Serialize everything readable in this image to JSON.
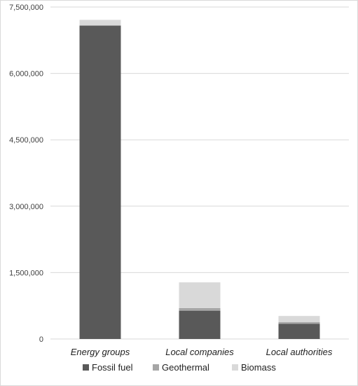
{
  "chart_data": {
    "type": "bar",
    "stacked": true,
    "title": "",
    "xlabel": "",
    "ylabel": "",
    "categories": [
      "Energy groups",
      "Local companies",
      "Local authorities"
    ],
    "series": [
      {
        "name": "Fossil fuel",
        "color": "#595959",
        "values": [
          7080000,
          640000,
          345000
        ]
      },
      {
        "name": "Geothermal",
        "color": "#a6a6a6",
        "values": [
          0,
          60000,
          35000
        ]
      },
      {
        "name": "Biomass",
        "color": "#d9d9d9",
        "values": [
          130000,
          580000,
          140000
        ]
      }
    ],
    "yticks": [
      0,
      1500000,
      3000000,
      4500000,
      6000000,
      7500000
    ],
    "ytick_labels": [
      "0",
      "1,500,000",
      "3,000,000",
      "4,500,000",
      "6,000,000",
      "7,500,000"
    ],
    "ylim": [
      0,
      7500000
    ],
    "grid": true,
    "legend_position": "bottom"
  }
}
